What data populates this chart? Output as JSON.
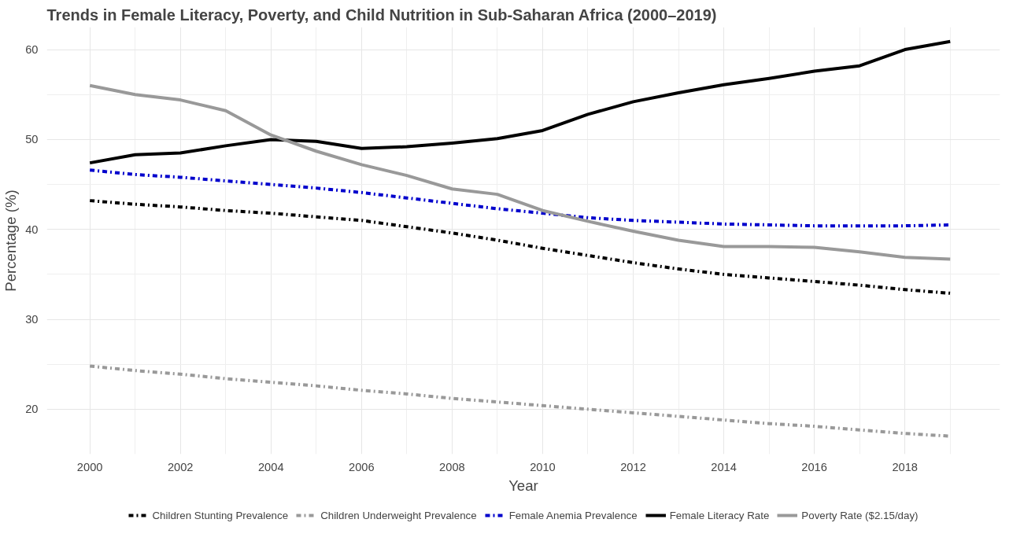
{
  "chart_data": {
    "type": "line",
    "title": "Trends in Female Literacy, Poverty, and Child Nutrition in Sub-Saharan Africa (2000–2019)",
    "xlabel": "Year",
    "ylabel": "Percentage (%)",
    "x": [
      2000,
      2001,
      2002,
      2003,
      2004,
      2005,
      2006,
      2007,
      2008,
      2009,
      2010,
      2011,
      2012,
      2013,
      2014,
      2015,
      2016,
      2017,
      2018,
      2019
    ],
    "series": [
      {
        "name": "Children Stunting Prevalence",
        "color": "#000000",
        "line_style": "dashdot",
        "values": [
          43.2,
          42.8,
          42.5,
          42.1,
          41.8,
          41.4,
          41.0,
          40.3,
          39.6,
          38.8,
          37.9,
          37.1,
          36.3,
          35.6,
          35.0,
          34.6,
          34.2,
          33.8,
          33.3,
          32.9
        ]
      },
      {
        "name": "Children Underweight Prevalence",
        "color": "#999999",
        "line_style": "dashdot",
        "values": [
          24.8,
          24.3,
          23.9,
          23.4,
          23.0,
          22.6,
          22.1,
          21.7,
          21.2,
          20.8,
          20.4,
          20.0,
          19.6,
          19.2,
          18.8,
          18.4,
          18.1,
          17.7,
          17.3,
          17.0
        ]
      },
      {
        "name": "Female Anemia Prevalence",
        "color": "#0000cc",
        "line_style": "dashdot",
        "values": [
          46.6,
          46.1,
          45.8,
          45.4,
          45.0,
          44.6,
          44.1,
          43.5,
          42.9,
          42.3,
          41.8,
          41.3,
          41.0,
          40.8,
          40.6,
          40.5,
          40.4,
          40.4,
          40.4,
          40.5
        ]
      },
      {
        "name": "Female Literacy Rate",
        "color": "#000000",
        "line_style": "solid",
        "values": [
          47.4,
          48.3,
          48.5,
          49.3,
          50.0,
          49.8,
          49.0,
          49.2,
          49.6,
          50.1,
          51.0,
          52.8,
          54.2,
          55.2,
          56.1,
          56.8,
          57.6,
          58.2,
          60.0,
          60.9
        ]
      },
      {
        "name": "Poverty Rate ($2.15/day)",
        "color": "#999999",
        "line_style": "solid",
        "values": [
          56.0,
          55.0,
          54.4,
          53.2,
          50.5,
          48.7,
          47.2,
          46.0,
          44.5,
          43.9,
          42.1,
          40.9,
          39.8,
          38.8,
          38.1,
          38.1,
          38.0,
          37.5,
          36.9,
          36.7
        ]
      }
    ],
    "xlim": [
      1999.05,
      2020.1
    ],
    "ylim": [
      15,
      62.5
    ],
    "xticks": [
      2000,
      2002,
      2004,
      2006,
      2008,
      2010,
      2012,
      2014,
      2016,
      2018
    ],
    "yticks": [
      20,
      30,
      40,
      50,
      60
    ],
    "grid": true,
    "legend": "bottom"
  }
}
